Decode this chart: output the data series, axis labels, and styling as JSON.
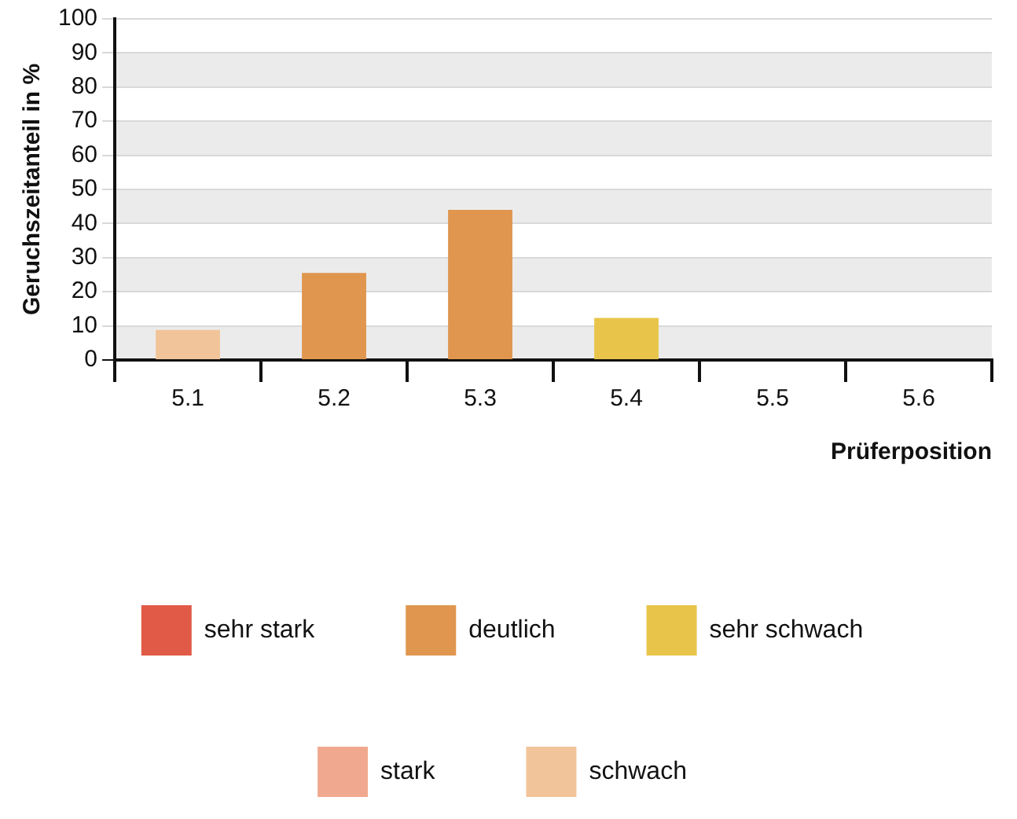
{
  "chart_data": {
    "type": "bar",
    "xlabel": "Prüferposition",
    "ylabel": "Geruchszeitanteil in %",
    "categories": [
      "5.1",
      "5.2",
      "5.3",
      "5.4",
      "5.5",
      "5.6"
    ],
    "series": [
      {
        "name": "sehr stark",
        "color": "#e05a47",
        "values": [
          null,
          null,
          null,
          null,
          null,
          null
        ]
      },
      {
        "name": "deutlich",
        "color": "#e0964f",
        "values": [
          null,
          25.5,
          44,
          null,
          null,
          null
        ]
      },
      {
        "name": "sehr schwach",
        "color": "#e8c54a",
        "values": [
          null,
          null,
          null,
          12.3,
          null,
          null
        ]
      },
      {
        "name": "stark",
        "color": "#f0a98e",
        "values": [
          null,
          null,
          null,
          null,
          null,
          null
        ]
      },
      {
        "name": "schwach",
        "color": "#f2c49a",
        "values": [
          8.8,
          null,
          null,
          null,
          null,
          null
        ]
      }
    ],
    "stacked": true,
    "ylim": [
      0,
      100
    ],
    "yticks": [
      0,
      10,
      20,
      30,
      40,
      50,
      60,
      70,
      80,
      90,
      100
    ],
    "grid": "y",
    "legend": "bottom"
  }
}
